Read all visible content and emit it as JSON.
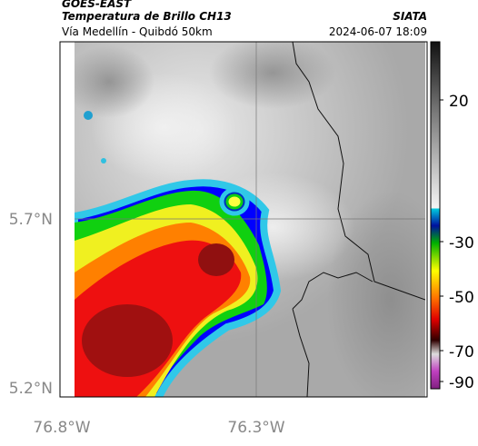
{
  "header": {
    "source": "GOES-EAST",
    "title": "Temperatura de Brillo CH13",
    "subtitle": "Vía Medellín - Quibdó 50km",
    "org": "SIATA",
    "datetime": "2024-06-07 18:09"
  },
  "map": {
    "lat_labels": [
      "5.7°N",
      "5.2°N"
    ],
    "lon_labels": [
      "76.8°W",
      "76.3°W"
    ]
  },
  "colorbar": {
    "tick_labels": [
      "20",
      "-30",
      "-50",
      "-70",
      "-90"
    ]
  }
}
